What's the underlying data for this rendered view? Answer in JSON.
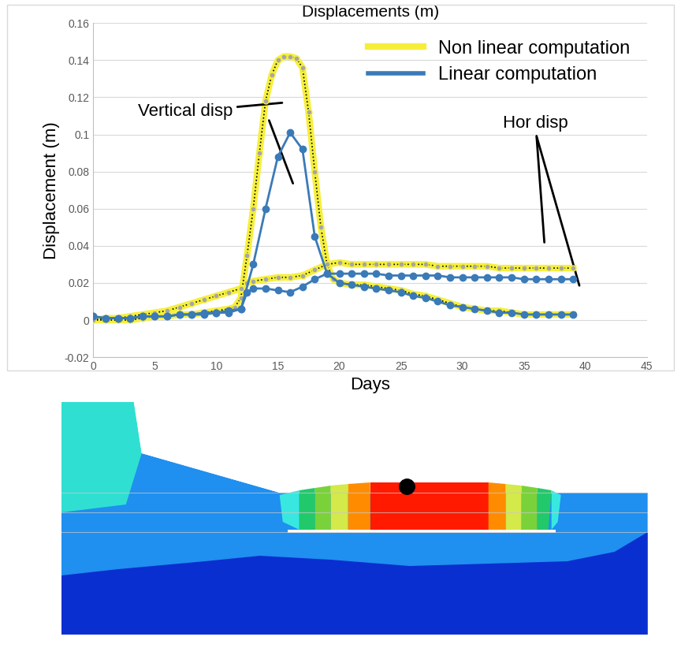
{
  "chart_data": {
    "type": "line",
    "title": "Displacements (m)",
    "x_label": "Days",
    "y_label": "Displacement (m)",
    "xlim": [
      0,
      45
    ],
    "xticks": [
      0,
      5,
      10,
      15,
      20,
      25,
      30,
      35,
      40,
      45
    ],
    "ylim": [
      -0.02,
      0.16
    ],
    "yticks": [
      -0.02,
      0,
      0.02,
      0.04,
      0.06,
      0.08,
      0.1,
      0.12,
      0.14,
      0.16
    ],
    "grid": true,
    "legend": "upper right",
    "annotations": [
      "Vertical disp",
      "Hor disp"
    ],
    "series": [
      {
        "name": "Non linear computation",
        "color": "#f5ef3c",
        "marker": "o",
        "line_style": "solid",
        "vertical": {
          "x": [
            0,
            1,
            2,
            3,
            4,
            5,
            6,
            7,
            8,
            9,
            10,
            11,
            11.5,
            12,
            12.5,
            13,
            13.5,
            14,
            14.5,
            15,
            15.5,
            16,
            16.5,
            17,
            17.5,
            18,
            18.5,
            19,
            19.5,
            20,
            21,
            22,
            23,
            24,
            25,
            26,
            27,
            28,
            29,
            30,
            31,
            32,
            33,
            34,
            35,
            36,
            37,
            38,
            39
          ],
          "values": [
            0,
            0,
            0,
            0,
            0.001,
            0.002,
            0.002,
            0.003,
            0.003,
            0.004,
            0.005,
            0.006,
            0.007,
            0.012,
            0.035,
            0.06,
            0.09,
            0.118,
            0.132,
            0.14,
            0.142,
            0.142,
            0.141,
            0.136,
            0.112,
            0.08,
            0.05,
            0.03,
            0.022,
            0.02,
            0.019,
            0.019,
            0.018,
            0.017,
            0.016,
            0.014,
            0.013,
            0.011,
            0.009,
            0.007,
            0.006,
            0.005,
            0.005,
            0.004,
            0.003,
            0.003,
            0.003,
            0.003,
            0.003
          ]
        },
        "horizontal": {
          "x": [
            0,
            1,
            2,
            3,
            4,
            5,
            6,
            7,
            8,
            9,
            10,
            11,
            12,
            12.5,
            13,
            14,
            15,
            16,
            17,
            18,
            19,
            20,
            21,
            22,
            23,
            24,
            25,
            26,
            27,
            28,
            29,
            30,
            31,
            32,
            33,
            34,
            35,
            36,
            37,
            38,
            39
          ],
          "values": [
            0,
            0.001,
            0.001,
            0.002,
            0.003,
            0.004,
            0.005,
            0.007,
            0.009,
            0.011,
            0.013,
            0.015,
            0.017,
            0.02,
            0.021,
            0.022,
            0.023,
            0.023,
            0.024,
            0.027,
            0.03,
            0.031,
            0.03,
            0.03,
            0.03,
            0.03,
            0.03,
            0.03,
            0.03,
            0.029,
            0.029,
            0.029,
            0.029,
            0.029,
            0.028,
            0.028,
            0.028,
            0.028,
            0.028,
            0.028,
            0.028
          ]
        }
      },
      {
        "name": "Linear computation",
        "color": "#3a7ab8",
        "marker": "o",
        "line_style": "solid",
        "vertical": {
          "x": [
            0,
            1,
            2,
            3,
            4,
            5,
            6,
            7,
            8,
            9,
            10,
            11,
            12,
            13,
            14,
            15,
            16,
            17,
            18,
            19,
            20,
            21,
            22,
            23,
            24,
            25,
            26,
            27,
            28,
            29,
            30,
            31,
            32,
            33,
            34,
            35,
            36,
            37,
            38,
            39
          ],
          "values": [
            0.002,
            0.001,
            0.001,
            0.001,
            0.002,
            0.002,
            0.002,
            0.003,
            0.003,
            0.004,
            0.004,
            0.005,
            0.006,
            0.03,
            0.06,
            0.088,
            0.101,
            0.092,
            0.045,
            0.025,
            0.02,
            0.019,
            0.018,
            0.017,
            0.016,
            0.015,
            0.013,
            0.012,
            0.01,
            0.008,
            0.007,
            0.006,
            0.005,
            0.004,
            0.004,
            0.003,
            0.003,
            0.003,
            0.003,
            0.003
          ]
        },
        "horizontal": {
          "x": [
            0,
            1,
            2,
            3,
            4,
            5,
            6,
            7,
            8,
            9,
            10,
            11,
            12,
            12.5,
            13,
            14,
            15,
            16,
            17,
            18,
            19,
            20,
            21,
            22,
            23,
            24,
            25,
            26,
            27,
            28,
            29,
            30,
            31,
            32,
            33,
            34,
            35,
            36,
            37,
            38,
            39
          ],
          "values": [
            0.002,
            0.001,
            0.001,
            0.001,
            0.002,
            0.002,
            0.002,
            0.003,
            0.003,
            0.003,
            0.004,
            0.004,
            0.006,
            0.015,
            0.017,
            0.017,
            0.016,
            0.015,
            0.018,
            0.022,
            0.025,
            0.025,
            0.025,
            0.025,
            0.025,
            0.024,
            0.024,
            0.024,
            0.024,
            0.024,
            0.023,
            0.023,
            0.023,
            0.023,
            0.023,
            0.023,
            0.022,
            0.022,
            0.022,
            0.022,
            0.022
          ]
        }
      }
    ]
  }
}
